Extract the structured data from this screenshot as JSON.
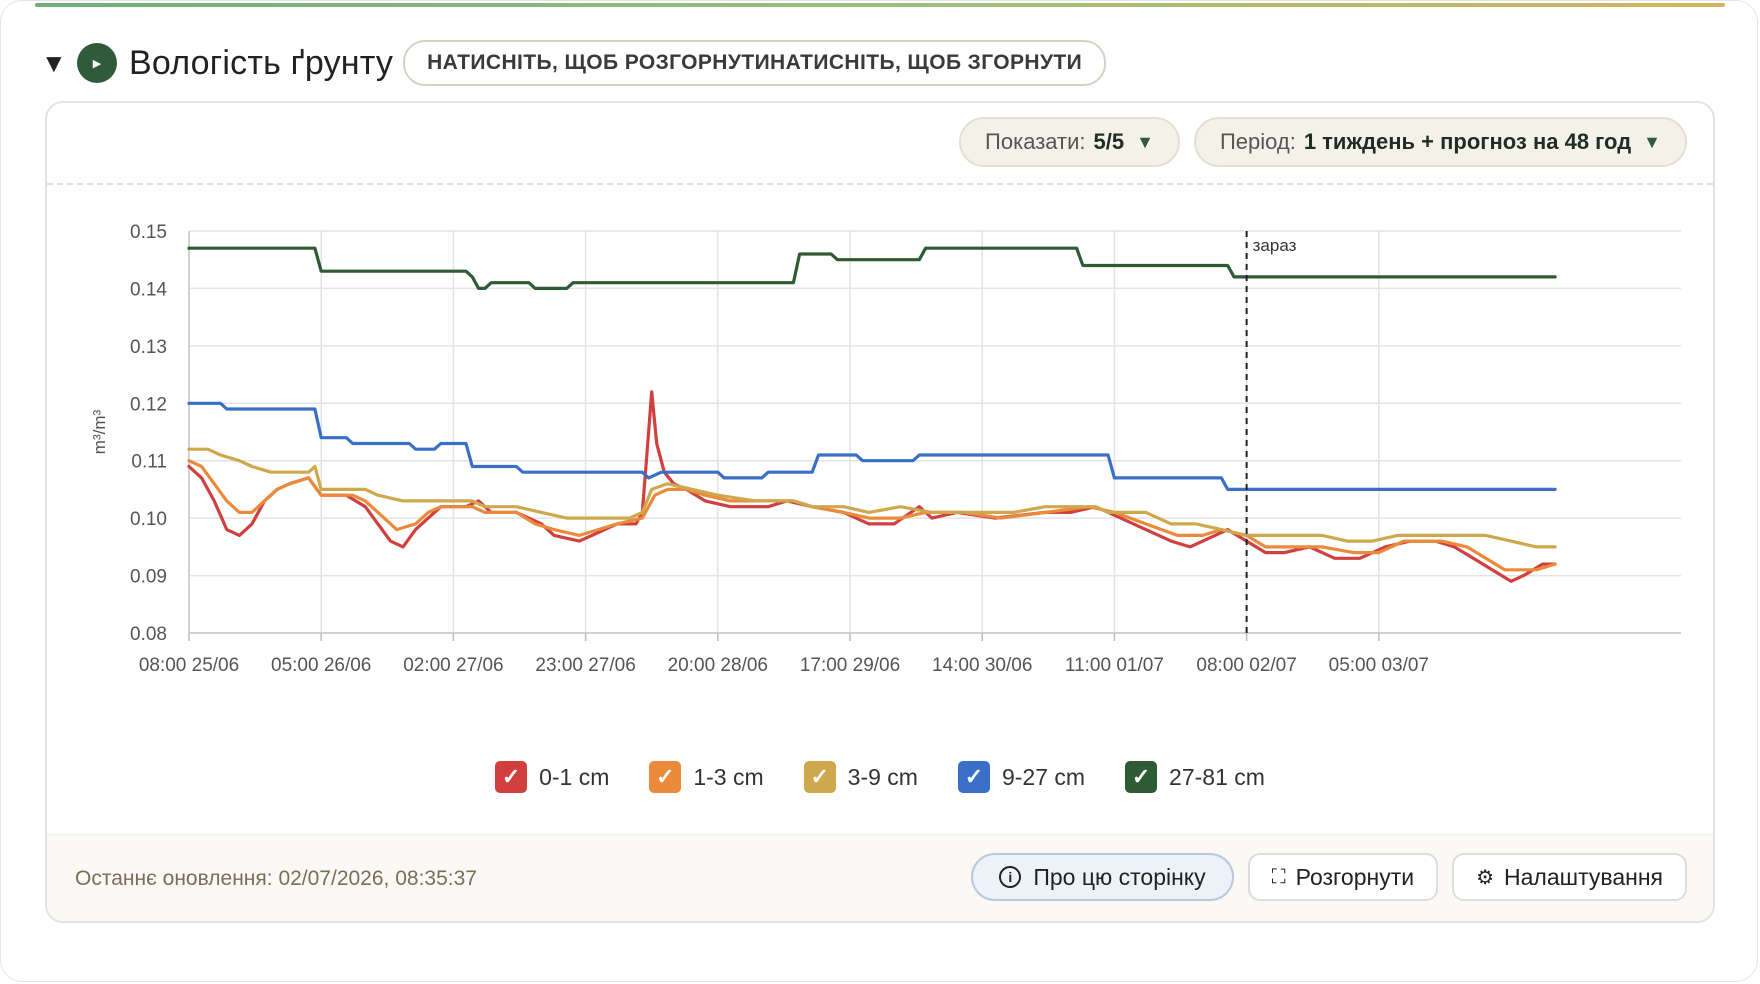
{
  "header": {
    "title": "Вологість ґрунту",
    "hint": "НАТИСНІТЬ, ЩОБ РОЗГОРНУТИНАТИСНІТЬ, ЩОБ ЗГОРНУТИ"
  },
  "controls": {
    "show_label": "Показати:",
    "show_value": "5/5",
    "period_label": "Період:",
    "period_value": "1 тиждень + прогноз на 48 год"
  },
  "footer": {
    "updated": "Останнє оновлення: 02/07/2026, 08:35:37",
    "about_label": "Про цю сторінку",
    "expand_label": "Розгорнути",
    "settings_label": "Налаштування"
  },
  "colors": {
    "accent": "#2f5b3a",
    "s0": "#d13f3f",
    "s1": "#ea8a3a",
    "s2": "#cfa84e",
    "s3": "#3a6fc8",
    "s4": "#2e5a34"
  },
  "chart_data": {
    "type": "line",
    "ylabel": "m³/m³",
    "ylim": [
      0.08,
      0.15
    ],
    "yticks": [
      "0.15",
      "0.14",
      "0.13",
      "0.12",
      "0.11",
      "0.10",
      "0.09",
      "0.08"
    ],
    "xlim_hours": [
      0,
      237
    ],
    "xticks": [
      {
        "h": 0,
        "label": "08:00 25/06"
      },
      {
        "h": 21,
        "label": "05:00 26/06"
      },
      {
        "h": 42,
        "label": "02:00 27/06"
      },
      {
        "h": 63,
        "label": "23:00 27/06"
      },
      {
        "h": 84,
        "label": "20:00 28/06"
      },
      {
        "h": 105,
        "label": "17:00 29/06"
      },
      {
        "h": 126,
        "label": "14:00 30/06"
      },
      {
        "h": 147,
        "label": "11:00 01/07"
      },
      {
        "h": 168,
        "label": "08:00 02/07"
      },
      {
        "h": 189,
        "label": "05:00 03/07"
      }
    ],
    "now": {
      "h": 168,
      "label": "зараз"
    },
    "grid": true,
    "legend_position": "bottom",
    "series": [
      {
        "name": "0-1 cm",
        "color": "#d13f3f",
        "points": [
          [
            0,
            0.109
          ],
          [
            2,
            0.107
          ],
          [
            4,
            0.103
          ],
          [
            6,
            0.098
          ],
          [
            8,
            0.097
          ],
          [
            10,
            0.099
          ],
          [
            12,
            0.103
          ],
          [
            14,
            0.105
          ],
          [
            16,
            0.106
          ],
          [
            19,
            0.107
          ],
          [
            21,
            0.104
          ],
          [
            25,
            0.104
          ],
          [
            28,
            0.102
          ],
          [
            30,
            0.099
          ],
          [
            32,
            0.096
          ],
          [
            34,
            0.095
          ],
          [
            36,
            0.098
          ],
          [
            38,
            0.1
          ],
          [
            40,
            0.102
          ],
          [
            44,
            0.102
          ],
          [
            46,
            0.103
          ],
          [
            48,
            0.101
          ],
          [
            52,
            0.101
          ],
          [
            56,
            0.099
          ],
          [
            58,
            0.097
          ],
          [
            62,
            0.096
          ],
          [
            64,
            0.097
          ],
          [
            68,
            0.099
          ],
          [
            71,
            0.099
          ],
          [
            72,
            0.101
          ],
          [
            72.8,
            0.112
          ],
          [
            73.5,
            0.122
          ],
          [
            74.3,
            0.113
          ],
          [
            75.5,
            0.108
          ],
          [
            77,
            0.106
          ],
          [
            79,
            0.105
          ],
          [
            82,
            0.103
          ],
          [
            86,
            0.102
          ],
          [
            92,
            0.102
          ],
          [
            95,
            0.103
          ],
          [
            99,
            0.102
          ],
          [
            104,
            0.101
          ],
          [
            108,
            0.099
          ],
          [
            112,
            0.099
          ],
          [
            116,
            0.102
          ],
          [
            118,
            0.1
          ],
          [
            122,
            0.101
          ],
          [
            128,
            0.1
          ],
          [
            136,
            0.101
          ],
          [
            140,
            0.101
          ],
          [
            144,
            0.102
          ],
          [
            148,
            0.1
          ],
          [
            152,
            0.098
          ],
          [
            156,
            0.096
          ],
          [
            159,
            0.095
          ],
          [
            163,
            0.097
          ],
          [
            165,
            0.098
          ],
          [
            168,
            0.096
          ],
          [
            171,
            0.094
          ],
          [
            174,
            0.094
          ],
          [
            178,
            0.095
          ],
          [
            182,
            0.093
          ],
          [
            186,
            0.093
          ],
          [
            190,
            0.095
          ],
          [
            194,
            0.096
          ],
          [
            198,
            0.096
          ],
          [
            201,
            0.095
          ],
          [
            204,
            0.093
          ],
          [
            207,
            0.091
          ],
          [
            210,
            0.089
          ],
          [
            212,
            0.09
          ],
          [
            215,
            0.092
          ],
          [
            217,
            0.092
          ]
        ]
      },
      {
        "name": "1-3 cm",
        "color": "#ea8a3a",
        "points": [
          [
            0,
            0.11
          ],
          [
            2,
            0.109
          ],
          [
            4,
            0.106
          ],
          [
            6,
            0.103
          ],
          [
            8,
            0.101
          ],
          [
            10,
            0.101
          ],
          [
            12,
            0.103
          ],
          [
            14,
            0.105
          ],
          [
            16,
            0.106
          ],
          [
            19,
            0.107
          ],
          [
            21,
            0.104
          ],
          [
            26,
            0.104
          ],
          [
            28,
            0.103
          ],
          [
            31,
            0.1
          ],
          [
            33,
            0.098
          ],
          [
            36,
            0.099
          ],
          [
            38,
            0.101
          ],
          [
            40,
            0.102
          ],
          [
            45,
            0.102
          ],
          [
            47,
            0.101
          ],
          [
            52,
            0.101
          ],
          [
            55,
            0.099
          ],
          [
            58,
            0.098
          ],
          [
            62,
            0.097
          ],
          [
            65,
            0.098
          ],
          [
            68,
            0.099
          ],
          [
            72,
            0.1
          ],
          [
            74,
            0.104
          ],
          [
            76,
            0.105
          ],
          [
            79,
            0.105
          ],
          [
            82,
            0.104
          ],
          [
            86,
            0.103
          ],
          [
            92,
            0.103
          ],
          [
            96,
            0.103
          ],
          [
            99,
            0.102
          ],
          [
            104,
            0.101
          ],
          [
            108,
            0.1
          ],
          [
            113,
            0.1
          ],
          [
            117,
            0.101
          ],
          [
            123,
            0.101
          ],
          [
            129,
            0.1
          ],
          [
            136,
            0.101
          ],
          [
            143,
            0.102
          ],
          [
            147,
            0.101
          ],
          [
            152,
            0.099
          ],
          [
            157,
            0.097
          ],
          [
            161,
            0.097
          ],
          [
            164,
            0.098
          ],
          [
            168,
            0.097
          ],
          [
            171,
            0.095
          ],
          [
            176,
            0.095
          ],
          [
            180,
            0.095
          ],
          [
            185,
            0.094
          ],
          [
            189,
            0.094
          ],
          [
            193,
            0.096
          ],
          [
            199,
            0.096
          ],
          [
            203,
            0.095
          ],
          [
            206,
            0.093
          ],
          [
            209,
            0.091
          ],
          [
            214,
            0.091
          ],
          [
            217,
            0.092
          ]
        ]
      },
      {
        "name": "3-9 cm",
        "color": "#cfa84e",
        "points": [
          [
            0,
            0.112
          ],
          [
            3,
            0.112
          ],
          [
            5,
            0.111
          ],
          [
            8,
            0.11
          ],
          [
            10,
            0.109
          ],
          [
            13,
            0.108
          ],
          [
            19,
            0.108
          ],
          [
            20,
            0.109
          ],
          [
            21,
            0.105
          ],
          [
            28,
            0.105
          ],
          [
            30,
            0.104
          ],
          [
            34,
            0.103
          ],
          [
            38,
            0.103
          ],
          [
            45,
            0.103
          ],
          [
            47,
            0.102
          ],
          [
            52,
            0.102
          ],
          [
            56,
            0.101
          ],
          [
            60,
            0.1
          ],
          [
            65,
            0.1
          ],
          [
            70,
            0.1
          ],
          [
            72,
            0.101
          ],
          [
            73.5,
            0.105
          ],
          [
            76,
            0.106
          ],
          [
            80,
            0.105
          ],
          [
            84,
            0.104
          ],
          [
            90,
            0.103
          ],
          [
            96,
            0.103
          ],
          [
            99,
            0.102
          ],
          [
            104,
            0.102
          ],
          [
            108,
            0.101
          ],
          [
            113,
            0.102
          ],
          [
            118,
            0.101
          ],
          [
            124,
            0.101
          ],
          [
            131,
            0.101
          ],
          [
            136,
            0.102
          ],
          [
            144,
            0.102
          ],
          [
            146,
            0.101
          ],
          [
            152,
            0.101
          ],
          [
            156,
            0.099
          ],
          [
            160,
            0.099
          ],
          [
            164,
            0.098
          ],
          [
            168,
            0.097
          ],
          [
            174,
            0.097
          ],
          [
            180,
            0.097
          ],
          [
            184,
            0.096
          ],
          [
            188,
            0.096
          ],
          [
            192,
            0.097
          ],
          [
            206,
            0.097
          ],
          [
            210,
            0.096
          ],
          [
            214,
            0.095
          ],
          [
            217,
            0.095
          ]
        ]
      },
      {
        "name": "9-27 cm",
        "color": "#3a6fc8",
        "points": [
          [
            0,
            0.12
          ],
          [
            5,
            0.12
          ],
          [
            6,
            0.119
          ],
          [
            20,
            0.119
          ],
          [
            21,
            0.114
          ],
          [
            25,
            0.114
          ],
          [
            26,
            0.113
          ],
          [
            35,
            0.113
          ],
          [
            36,
            0.112
          ],
          [
            39,
            0.112
          ],
          [
            40,
            0.113
          ],
          [
            44,
            0.113
          ],
          [
            45,
            0.109
          ],
          [
            52,
            0.109
          ],
          [
            53,
            0.108
          ],
          [
            66,
            0.108
          ],
          [
            72,
            0.108
          ],
          [
            73,
            0.107
          ],
          [
            75,
            0.108
          ],
          [
            84,
            0.108
          ],
          [
            85,
            0.107
          ],
          [
            91,
            0.107
          ],
          [
            92,
            0.108
          ],
          [
            99,
            0.108
          ],
          [
            100,
            0.111
          ],
          [
            106,
            0.111
          ],
          [
            107,
            0.11
          ],
          [
            115,
            0.11
          ],
          [
            116,
            0.111
          ],
          [
            146,
            0.111
          ],
          [
            147,
            0.107
          ],
          [
            164,
            0.107
          ],
          [
            165,
            0.105
          ],
          [
            217,
            0.105
          ]
        ]
      },
      {
        "name": "27-81 cm",
        "color": "#2e5a34",
        "points": [
          [
            0,
            0.147
          ],
          [
            20,
            0.147
          ],
          [
            21,
            0.143
          ],
          [
            44,
            0.143
          ],
          [
            45,
            0.142
          ],
          [
            46,
            0.14
          ],
          [
            47,
            0.14
          ],
          [
            48,
            0.141
          ],
          [
            54,
            0.141
          ],
          [
            55,
            0.14
          ],
          [
            60,
            0.14
          ],
          [
            61,
            0.141
          ],
          [
            96,
            0.141
          ],
          [
            97,
            0.146
          ],
          [
            102,
            0.146
          ],
          [
            103,
            0.145
          ],
          [
            116,
            0.145
          ],
          [
            117,
            0.147
          ],
          [
            141,
            0.147
          ],
          [
            142,
            0.144
          ],
          [
            165,
            0.144
          ],
          [
            166,
            0.142
          ],
          [
            217,
            0.142
          ]
        ]
      }
    ]
  }
}
